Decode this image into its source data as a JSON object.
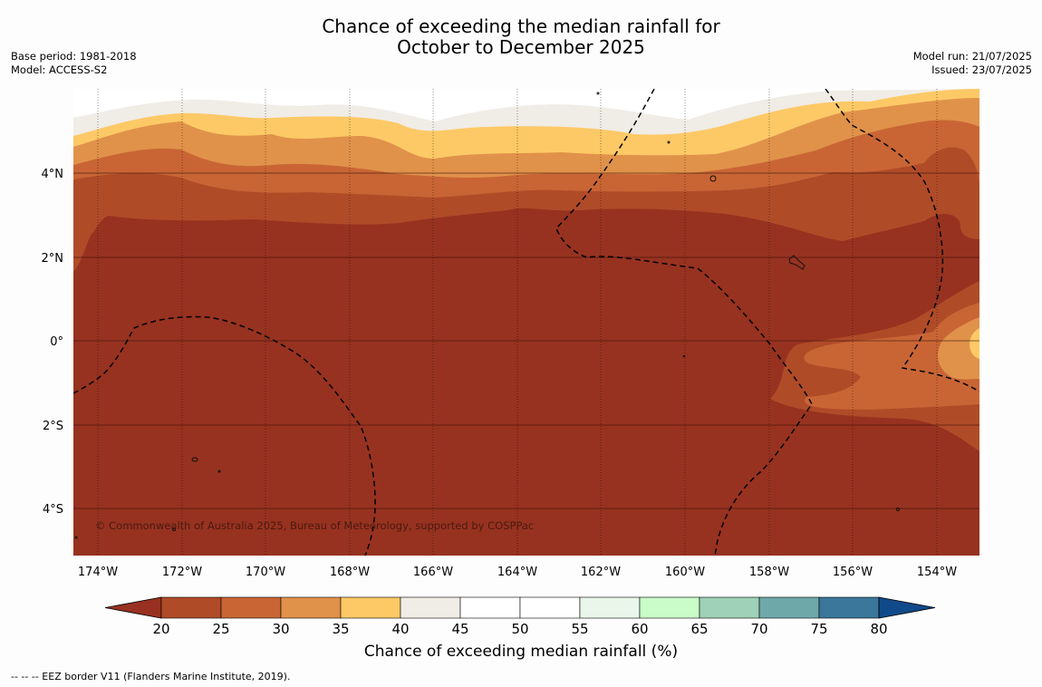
{
  "title_line1": "Chance of exceeding the median rainfall for",
  "title_line2": "October to December 2025",
  "base_period": "Base period: 1981-2018",
  "model": "Model: ACCESS-S2",
  "model_run": "Model run: 21/07/2025",
  "issued": "Issued: 23/07/2025",
  "copyright": "© Commonwealth of Australia 2025, Bureau of Meteorology, supported by COSPPac",
  "footer_note": "--  --  -- EEZ border V11 (Flanders Marine Institute, 2019).",
  "map": {
    "lon_labels": [
      "174°W",
      "172°W",
      "170°W",
      "168°W",
      "166°W",
      "164°W",
      "162°W",
      "160°W",
      "158°W",
      "156°W",
      "154°W"
    ],
    "lat_labels": [
      "4°N",
      "2°N",
      "0°",
      "2°S",
      "4°S"
    ],
    "dominant_color": "#973220"
  },
  "colorbar": {
    "title": "Chance of exceeding median rainfall (%)",
    "ticks": [
      "20",
      "25",
      "30",
      "35",
      "40",
      "45",
      "50",
      "55",
      "60",
      "65",
      "70",
      "75",
      "80"
    ],
    "colors": [
      "#983121",
      "#b04b28",
      "#c96535",
      "#e0924a",
      "#fdc966",
      "#f0ece6",
      "#ffffff",
      "#ffffff",
      "#eaf6ea",
      "#c9fcc8",
      "#9ed1b7",
      "#6fa8a8",
      "#3b779b",
      "#114a8a"
    ]
  }
}
